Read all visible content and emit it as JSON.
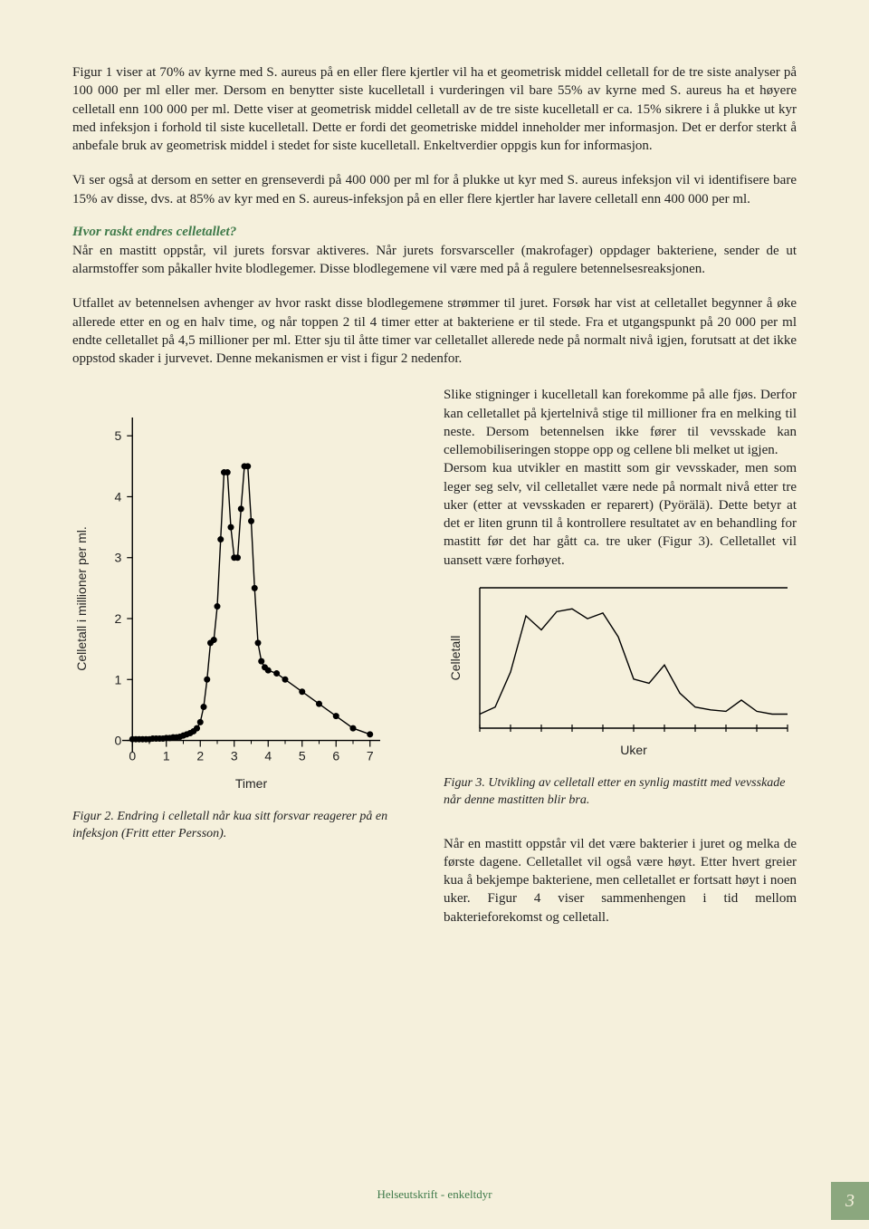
{
  "paragraphs": {
    "p1": "Figur 1 viser at 70% av kyrne med S. aureus på en eller flere kjertler vil ha et geometrisk middel celletall for de tre siste analyser på 100 000 per ml eller mer. Dersom en benytter siste kucelletall i vurderingen vil bare 55% av kyrne med S. aureus ha et høyere celletall enn 100 000 per ml. Dette viser at geometrisk middel celletall av de tre siste kucelletall er ca. 15% sikrere i å plukke ut kyr med infeksjon i forhold til siste kucelletall. Dette er fordi det geometriske middel inneholder mer informasjon. Det er derfor sterkt å anbefale bruk av geometrisk middel i stedet for siste kucelletall. Enkeltverdier oppgis kun for informasjon.",
    "p2": "Vi ser også at dersom en setter en grenseverdi på 400 000 per ml for å plukke ut kyr med S. aureus infeksjon vil vi identifisere bare 15% av disse, dvs. at 85% av kyr med en S. aureus-infeksjon på en eller flere kjertler har lavere celletall enn 400 000 per ml.",
    "heading1": "Hvor raskt endres celletallet?",
    "p3": "Når en mastitt oppstår, vil jurets forsvar aktiveres. Når jurets forsvarsceller (makrofager) oppdager bakteriene, sender de ut alarmstoffer som påkaller hvite blodlegemer. Disse blodlegemene vil være med på å regulere betennelsesreaksjonen.",
    "p4": "Utfallet av betennelsen avhenger av hvor raskt disse blodlegemene strømmer til juret. Forsøk har vist at celletallet begynner å øke allerede etter en og en halv time, og når toppen 2 til 4 timer etter at bakteriene er til stede. Fra et utgangspunkt på 20 000 per ml endte celletallet på 4,5 millioner per ml. Etter sju til åtte timer var celletallet allerede nede på normalt nivå igjen, forutsatt at det ikke oppstod skader i jurvevet. Denne mekanismen er vist i figur 2 nedenfor.",
    "right1": "Slike stigninger i kucelletall kan forekomme på alle fjøs. Derfor kan celletallet på kjertelnivå stige til millioner fra en melking til neste. Dersom betennelsen ikke fører til vevsskade kan cellemobiliseringen stoppe opp og cellene bli melket ut igjen.",
    "right2": "Dersom kua utvikler en mastitt som gir vevsskader, men som leger seg selv, vil celletallet være nede på normalt nivå etter tre uker (etter at vevsskaden er reparert) (Pyörälä). Dette betyr at det er liten grunn til å kontrollere resultatet av en behandling for mastitt før det har gått ca. tre uker (Figur 3). Celletallet vil uansett være forhøyet.",
    "right3": "Når en mastitt oppstår vil det være bakterier i juret og melka de første dagene. Celletallet vil også være høyt. Etter hvert greier kua å bekjempe bakteriene, men celletallet er fortsatt høyt i noen uker. Figur 4 viser sammenhengen i tid mellom bakterieforekomst og celletall."
  },
  "figure2": {
    "caption": "Figur 2. Endring i celletall når kua sitt forsvar reagerer på en infeksjon (Fritt etter Persson).",
    "ylabel": "Celletall i millioner per ml.",
    "xlabel": "Timer",
    "type": "line",
    "xlim": [
      -0.3,
      7.3
    ],
    "ylim": [
      -0.2,
      5.3
    ],
    "yticks": [
      0,
      1,
      2,
      3,
      4,
      5
    ],
    "xticks": [
      0,
      1,
      2,
      3,
      4,
      5,
      6,
      7
    ],
    "line_color": "#000000",
    "marker": "circle",
    "marker_size": 3.5,
    "line_width": 1.4,
    "points": [
      [
        0.0,
        0.02
      ],
      [
        0.1,
        0.02
      ],
      [
        0.2,
        0.02
      ],
      [
        0.3,
        0.02
      ],
      [
        0.4,
        0.02
      ],
      [
        0.5,
        0.02
      ],
      [
        0.6,
        0.03
      ],
      [
        0.7,
        0.03
      ],
      [
        0.8,
        0.03
      ],
      [
        0.9,
        0.03
      ],
      [
        1.0,
        0.04
      ],
      [
        1.1,
        0.04
      ],
      [
        1.2,
        0.05
      ],
      [
        1.3,
        0.05
      ],
      [
        1.4,
        0.06
      ],
      [
        1.5,
        0.08
      ],
      [
        1.6,
        0.1
      ],
      [
        1.7,
        0.12
      ],
      [
        1.8,
        0.15
      ],
      [
        1.9,
        0.2
      ],
      [
        2.0,
        0.3
      ],
      [
        2.1,
        0.55
      ],
      [
        2.2,
        1.0
      ],
      [
        2.3,
        1.6
      ],
      [
        2.4,
        1.65
      ],
      [
        2.5,
        2.2
      ],
      [
        2.6,
        3.3
      ],
      [
        2.7,
        4.4
      ],
      [
        2.8,
        4.4
      ],
      [
        2.9,
        3.5
      ],
      [
        3.0,
        3.0
      ],
      [
        3.1,
        3.0
      ],
      [
        3.2,
        3.8
      ],
      [
        3.3,
        4.5
      ],
      [
        3.4,
        4.5
      ],
      [
        3.5,
        3.6
      ],
      [
        3.6,
        2.5
      ],
      [
        3.7,
        1.6
      ],
      [
        3.8,
        1.3
      ],
      [
        3.9,
        1.2
      ],
      [
        4.0,
        1.15
      ],
      [
        4.25,
        1.1
      ],
      [
        4.5,
        1.0
      ],
      [
        5.0,
        0.8
      ],
      [
        5.5,
        0.6
      ],
      [
        6.0,
        0.4
      ],
      [
        6.5,
        0.2
      ],
      [
        7.0,
        0.1
      ]
    ]
  },
  "figure3": {
    "caption": "Figur 3. Utvikling av celletall etter en synlig mastitt med vevsskade når denne mastitten blir bra.",
    "ylabel": "Celletall",
    "xlabel": "Uker",
    "type": "line",
    "line_color": "#000000",
    "line_width": 1.4,
    "xlim": [
      0,
      10
    ],
    "ylim": [
      0,
      10
    ],
    "xticks_count": 10,
    "points": [
      [
        0,
        1.0
      ],
      [
        0.5,
        1.5
      ],
      [
        1.0,
        4.0
      ],
      [
        1.5,
        8.0
      ],
      [
        2.0,
        7.0
      ],
      [
        2.5,
        8.3
      ],
      [
        3.0,
        8.5
      ],
      [
        3.5,
        7.8
      ],
      [
        4.0,
        8.2
      ],
      [
        4.5,
        6.5
      ],
      [
        5.0,
        3.5
      ],
      [
        5.5,
        3.2
      ],
      [
        6.0,
        4.5
      ],
      [
        6.5,
        2.5
      ],
      [
        7.0,
        1.5
      ],
      [
        7.5,
        1.3
      ],
      [
        8.0,
        1.2
      ],
      [
        8.5,
        2.0
      ],
      [
        9.0,
        1.2
      ],
      [
        9.5,
        1.0
      ],
      [
        10.0,
        1.0
      ]
    ]
  },
  "footer": "Helseutskrift - enkeltdyr",
  "page_number": "3",
  "colors": {
    "background": "#f5f0dc",
    "heading_green": "#3f7a4a",
    "page_tab": "#8ba77e"
  }
}
